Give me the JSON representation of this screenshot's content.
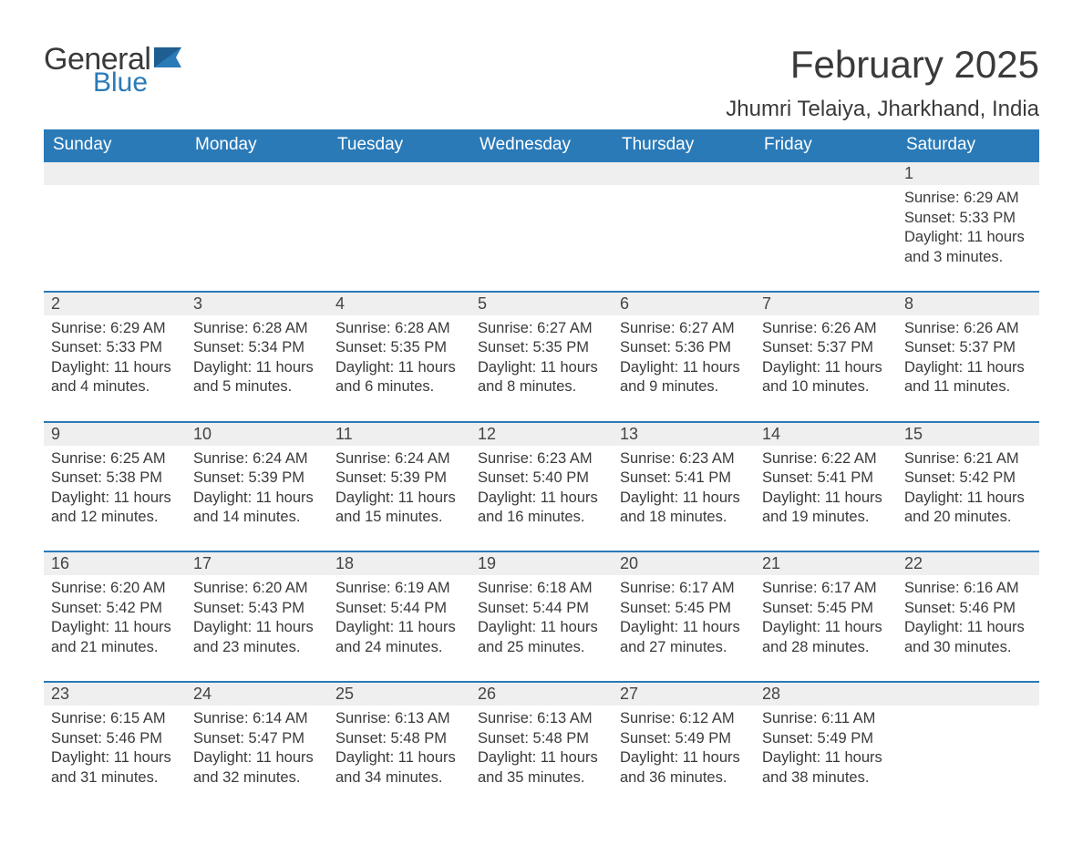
{
  "logo": {
    "general": "General",
    "blue": "Blue"
  },
  "title": "February 2025",
  "location": "Jhumri Telaiya, Jharkhand, India",
  "colors": {
    "header_bg": "#2a7ab8",
    "header_text": "#ffffff",
    "daynum_bg": "#efefef",
    "border_top": "#2a7ab8",
    "text": "#3a3a3a",
    "logo_blue": "#2a7ab8"
  },
  "weekdays": [
    "Sunday",
    "Monday",
    "Tuesday",
    "Wednesday",
    "Thursday",
    "Friday",
    "Saturday"
  ],
  "weeks": [
    [
      null,
      null,
      null,
      null,
      null,
      null,
      {
        "n": "1",
        "sr": "6:29 AM",
        "ss": "5:33 PM",
        "dl": "11 hours and 3 minutes."
      }
    ],
    [
      {
        "n": "2",
        "sr": "6:29 AM",
        "ss": "5:33 PM",
        "dl": "11 hours and 4 minutes."
      },
      {
        "n": "3",
        "sr": "6:28 AM",
        "ss": "5:34 PM",
        "dl": "11 hours and 5 minutes."
      },
      {
        "n": "4",
        "sr": "6:28 AM",
        "ss": "5:35 PM",
        "dl": "11 hours and 6 minutes."
      },
      {
        "n": "5",
        "sr": "6:27 AM",
        "ss": "5:35 PM",
        "dl": "11 hours and 8 minutes."
      },
      {
        "n": "6",
        "sr": "6:27 AM",
        "ss": "5:36 PM",
        "dl": "11 hours and 9 minutes."
      },
      {
        "n": "7",
        "sr": "6:26 AM",
        "ss": "5:37 PM",
        "dl": "11 hours and 10 minutes."
      },
      {
        "n": "8",
        "sr": "6:26 AM",
        "ss": "5:37 PM",
        "dl": "11 hours and 11 minutes."
      }
    ],
    [
      {
        "n": "9",
        "sr": "6:25 AM",
        "ss": "5:38 PM",
        "dl": "11 hours and 12 minutes."
      },
      {
        "n": "10",
        "sr": "6:24 AM",
        "ss": "5:39 PM",
        "dl": "11 hours and 14 minutes."
      },
      {
        "n": "11",
        "sr": "6:24 AM",
        "ss": "5:39 PM",
        "dl": "11 hours and 15 minutes."
      },
      {
        "n": "12",
        "sr": "6:23 AM",
        "ss": "5:40 PM",
        "dl": "11 hours and 16 minutes."
      },
      {
        "n": "13",
        "sr": "6:23 AM",
        "ss": "5:41 PM",
        "dl": "11 hours and 18 minutes."
      },
      {
        "n": "14",
        "sr": "6:22 AM",
        "ss": "5:41 PM",
        "dl": "11 hours and 19 minutes."
      },
      {
        "n": "15",
        "sr": "6:21 AM",
        "ss": "5:42 PM",
        "dl": "11 hours and 20 minutes."
      }
    ],
    [
      {
        "n": "16",
        "sr": "6:20 AM",
        "ss": "5:42 PM",
        "dl": "11 hours and 21 minutes."
      },
      {
        "n": "17",
        "sr": "6:20 AM",
        "ss": "5:43 PM",
        "dl": "11 hours and 23 minutes."
      },
      {
        "n": "18",
        "sr": "6:19 AM",
        "ss": "5:44 PM",
        "dl": "11 hours and 24 minutes."
      },
      {
        "n": "19",
        "sr": "6:18 AM",
        "ss": "5:44 PM",
        "dl": "11 hours and 25 minutes."
      },
      {
        "n": "20",
        "sr": "6:17 AM",
        "ss": "5:45 PM",
        "dl": "11 hours and 27 minutes."
      },
      {
        "n": "21",
        "sr": "6:17 AM",
        "ss": "5:45 PM",
        "dl": "11 hours and 28 minutes."
      },
      {
        "n": "22",
        "sr": "6:16 AM",
        "ss": "5:46 PM",
        "dl": "11 hours and 30 minutes."
      }
    ],
    [
      {
        "n": "23",
        "sr": "6:15 AM",
        "ss": "5:46 PM",
        "dl": "11 hours and 31 minutes."
      },
      {
        "n": "24",
        "sr": "6:14 AM",
        "ss": "5:47 PM",
        "dl": "11 hours and 32 minutes."
      },
      {
        "n": "25",
        "sr": "6:13 AM",
        "ss": "5:48 PM",
        "dl": "11 hours and 34 minutes."
      },
      {
        "n": "26",
        "sr": "6:13 AM",
        "ss": "5:48 PM",
        "dl": "11 hours and 35 minutes."
      },
      {
        "n": "27",
        "sr": "6:12 AM",
        "ss": "5:49 PM",
        "dl": "11 hours and 36 minutes."
      },
      {
        "n": "28",
        "sr": "6:11 AM",
        "ss": "5:49 PM",
        "dl": "11 hours and 38 minutes."
      },
      null
    ]
  ],
  "labels": {
    "sunrise": "Sunrise: ",
    "sunset": "Sunset: ",
    "daylight": "Daylight: "
  }
}
